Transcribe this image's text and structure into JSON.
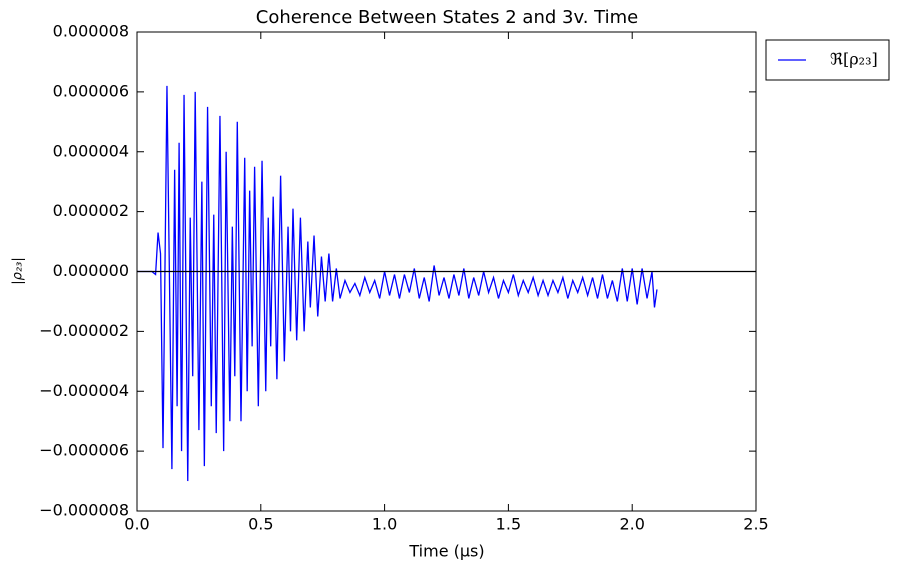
{
  "chart_data": {
    "type": "line",
    "title": "Coherence Between States 2 and 3v. Time",
    "x_label": "Time (μs)",
    "y_label": "|ρ₂₃|",
    "x": [
      0,
      0.02,
      0.04,
      0.06,
      0.075,
      0.085,
      0.095,
      0.105,
      0.121,
      0.141,
      0.152,
      0.162,
      0.17,
      0.18,
      0.19,
      0.205,
      0.215,
      0.225,
      0.235,
      0.25,
      0.262,
      0.272,
      0.285,
      0.3,
      0.31,
      0.32,
      0.335,
      0.35,
      0.36,
      0.375,
      0.385,
      0.395,
      0.405,
      0.42,
      0.435,
      0.445,
      0.455,
      0.465,
      0.475,
      0.49,
      0.505,
      0.52,
      0.53,
      0.54,
      0.55,
      0.565,
      0.58,
      0.595,
      0.61,
      0.62,
      0.63,
      0.645,
      0.66,
      0.675,
      0.69,
      0.7,
      0.715,
      0.73,
      0.745,
      0.76,
      0.775,
      0.79,
      0.805,
      0.82,
      0.84,
      0.86,
      0.88,
      0.9,
      0.92,
      0.94,
      0.96,
      0.98,
      1.0,
      1.02,
      1.04,
      1.06,
      1.08,
      1.1,
      1.12,
      1.14,
      1.16,
      1.18,
      1.2,
      1.22,
      1.24,
      1.26,
      1.28,
      1.3,
      1.32,
      1.34,
      1.36,
      1.38,
      1.4,
      1.42,
      1.44,
      1.46,
      1.48,
      1.5,
      1.52,
      1.54,
      1.56,
      1.58,
      1.6,
      1.62,
      1.64,
      1.66,
      1.68,
      1.7,
      1.72,
      1.74,
      1.76,
      1.78,
      1.8,
      1.82,
      1.84,
      1.86,
      1.88,
      1.9,
      1.92,
      1.94,
      1.96,
      1.98,
      2.0,
      2.02,
      2.04,
      2.06,
      2.08,
      2.09,
      2.1
    ],
    "series": [
      {
        "name": "ℜ[ρ₂₃]",
        "color": "#0000ff",
        "values": [
          0,
          0,
          0,
          0,
          -1e-07,
          1.3e-06,
          6e-07,
          -5.9e-06,
          6.2e-06,
          -6.6e-06,
          3.4e-06,
          -4.5e-06,
          4.3e-06,
          -6e-06,
          5.9e-06,
          -7e-06,
          1.8e-06,
          -3.5e-06,
          6e-06,
          -5.3e-06,
          3e-06,
          -6.5e-06,
          5.5e-06,
          -4.5e-06,
          1.9e-06,
          -5.4e-06,
          5.2e-06,
          -6e-06,
          4e-06,
          -5e-06,
          1.5e-06,
          -3.5e-06,
          5e-06,
          -5e-06,
          3.8e-06,
          -4e-06,
          2.7e-06,
          -2.5e-06,
          3.5e-06,
          -4.5e-06,
          3.7e-06,
          -4e-06,
          1.8e-06,
          -2.5e-06,
          2.5e-06,
          -3.6e-06,
          3.2e-06,
          -3e-06,
          1.5e-06,
          -2e-06,
          2.1e-06,
          -2.3e-06,
          1.8e-06,
          -2e-06,
          1e-06,
          -1.2e-06,
          1.2e-06,
          -1.5e-06,
          5e-07,
          -1e-06,
          6e-07,
          -1e-06,
          1e-07,
          -9e-07,
          -3e-07,
          -7e-07,
          -4e-07,
          -8e-07,
          -2e-07,
          -7e-07,
          -3e-07,
          -9e-07,
          0,
          -8e-07,
          -1e-07,
          -9e-07,
          -1e-07,
          -7e-07,
          1e-07,
          -9e-07,
          -2e-07,
          -1e-06,
          2e-07,
          -8e-07,
          -2e-07,
          -9e-07,
          -1e-07,
          -8e-07,
          1e-07,
          -9e-07,
          -2e-07,
          -8e-07,
          0,
          -7e-07,
          -2e-07,
          -9e-07,
          -3e-07,
          -7e-07,
          -1e-07,
          -8e-07,
          -3e-07,
          -7e-07,
          -2e-07,
          -8e-07,
          -3e-07,
          -8e-07,
          -3e-07,
          -7e-07,
          -2e-07,
          -9e-07,
          -3e-07,
          -7e-07,
          -2e-07,
          -8e-07,
          -2e-07,
          -9e-07,
          -1e-07,
          -9e-07,
          -3e-07,
          -1e-06,
          1e-07,
          -1e-06,
          1e-07,
          -1.1e-06,
          1e-07,
          -9e-07,
          0,
          -1.2e-06,
          -6e-07
        ]
      }
    ],
    "hline": 0,
    "hline_color": "#000000",
    "xlim": [
      0,
      2.5
    ],
    "xticks": [
      {
        "value": 0,
        "label": "0.0"
      },
      0.5,
      {
        "value": 1,
        "label": "1.0"
      },
      1.5,
      {
        "value": 2,
        "label": "2.0"
      },
      2.5
    ],
    "ylim": [
      -8e-06,
      8e-06
    ],
    "yticks": [
      {
        "value": -8e-06,
        "label": "−0.000008"
      },
      {
        "value": -6e-06,
        "label": "−0.000006"
      },
      {
        "value": -4e-06,
        "label": "−0.000004"
      },
      {
        "value": -2e-06,
        "label": "−0.000002"
      },
      {
        "value": 0,
        "label": "0.000000"
      },
      2e-06,
      4e-06,
      6e-06,
      8e-06
    ],
    "grid": false,
    "legend": "outside upper right"
  }
}
